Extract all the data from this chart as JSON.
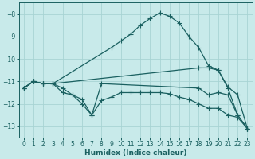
{
  "xlabel": "Humidex (Indice chaleur)",
  "bg_color": "#c8eaea",
  "grid_color": "#a8d4d4",
  "line_color": "#1a6060",
  "xlim": [
    -0.5,
    23.5
  ],
  "ylim": [
    -13.5,
    -7.5
  ],
  "yticks": [
    -13,
    -12,
    -11,
    -10,
    -9,
    -8
  ],
  "xticks": [
    0,
    1,
    2,
    3,
    4,
    5,
    6,
    7,
    8,
    9,
    10,
    11,
    12,
    13,
    14,
    15,
    16,
    17,
    18,
    19,
    20,
    21,
    22,
    23
  ],
  "lines": [
    {
      "x": [
        0,
        1,
        2,
        3,
        9,
        10,
        11,
        12,
        13,
        14,
        15,
        16,
        17,
        18,
        19,
        20,
        21,
        22,
        23
      ],
      "y": [
        -11.3,
        -11.0,
        -11.1,
        -11.1,
        -9.5,
        -9.2,
        -8.9,
        -8.5,
        -8.2,
        -7.95,
        -8.1,
        -8.4,
        -9.0,
        -9.5,
        -10.3,
        -10.5,
        -11.3,
        -12.5,
        -13.1
      ]
    },
    {
      "x": [
        0,
        1,
        2,
        3,
        18,
        19,
        20,
        21,
        22,
        23
      ],
      "y": [
        -11.3,
        -11.0,
        -11.1,
        -11.1,
        -10.4,
        -10.4,
        -10.5,
        -11.25,
        -11.6,
        -13.1
      ]
    },
    {
      "x": [
        0,
        1,
        2,
        3,
        4,
        5,
        6,
        7,
        8,
        18,
        19,
        20,
        21,
        22,
        23
      ],
      "y": [
        -11.3,
        -11.0,
        -11.1,
        -11.1,
        -11.5,
        -11.6,
        -11.8,
        -12.5,
        -11.1,
        -11.3,
        -11.6,
        -11.5,
        -11.6,
        -12.5,
        -13.1
      ]
    },
    {
      "x": [
        0,
        1,
        2,
        3,
        4,
        5,
        6,
        7,
        8,
        9,
        10,
        11,
        12,
        13,
        14,
        15,
        16,
        17,
        18,
        19,
        20,
        21,
        22,
        23
      ],
      "y": [
        -11.3,
        -11.0,
        -11.1,
        -11.1,
        -11.3,
        -11.6,
        -12.0,
        -12.5,
        -11.85,
        -11.7,
        -11.5,
        -11.5,
        -11.5,
        -11.5,
        -11.5,
        -11.55,
        -11.7,
        -11.8,
        -12.0,
        -12.2,
        -12.2,
        -12.5,
        -12.6,
        -13.1
      ]
    }
  ],
  "marker": "+",
  "markersize": 4,
  "linewidth": 0.9
}
